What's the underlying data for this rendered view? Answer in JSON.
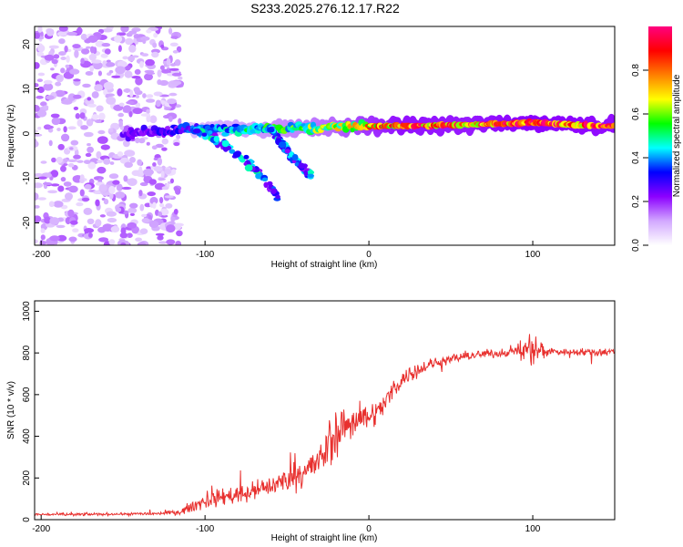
{
  "title": "S233.2025.276.12.17.R22",
  "colors": {
    "snr_line": "#e8302e",
    "axis": "#000000",
    "background": "#ffffff"
  },
  "chart_data": [
    {
      "type": "heatmap",
      "xlabel": "Height of straight line (km)",
      "ylabel": "Frequency (Hz)",
      "xlim": [
        -204,
        150
      ],
      "ylim": [
        -25,
        24
      ],
      "xticks": [
        -200,
        -100,
        0,
        100
      ],
      "yticks": [
        -20,
        -10,
        0,
        10,
        20
      ],
      "colorbar": {
        "label": "Normalized spectral amplitude",
        "range": [
          0,
          1
        ],
        "ticks": [
          "0.0",
          "0.2",
          "0.4",
          "0.6",
          "0.8"
        ],
        "tick_values": [
          0.0,
          0.2,
          0.4,
          0.6,
          0.8
        ],
        "stops": [
          "#ffffff",
          "#d2a8ff",
          "#8c00ff",
          "#0000ff",
          "#00ffff",
          "#00ff00",
          "#ffff00",
          "#ff7f00",
          "#ff0000",
          "#ff0080"
        ]
      },
      "ridge": {
        "description": "dominant frequency ridge versus height",
        "x": [
          -204,
          -150,
          -120,
          -100,
          -80,
          -60,
          -40,
          -20,
          0,
          20,
          60,
          100,
          150
        ],
        "freq_hz": [
          0,
          0,
          0.8,
          1.2,
          1.0,
          1.0,
          1.3,
          1.5,
          1.7,
          1.7,
          2.0,
          2.4,
          1.6
        ],
        "amplitude": [
          0.12,
          0.22,
          0.28,
          0.38,
          0.45,
          0.5,
          0.55,
          0.62,
          0.75,
          0.85,
          0.82,
          0.9,
          0.85
        ]
      },
      "noise_region": {
        "x": [
          -204,
          -115
        ],
        "freq_hz": [
          -25,
          24
        ],
        "amplitude": 0.1
      },
      "branches": [
        {
          "x": [
            -105,
            -85,
            -70,
            -55
          ],
          "freq_hz": [
            1.0,
            -3.0,
            -8.0,
            -14.0
          ]
        },
        {
          "x": [
            -60,
            -45,
            -35
          ],
          "freq_hz": [
            1.0,
            -6.0,
            -9.5
          ]
        }
      ]
    },
    {
      "type": "line",
      "xlabel": "Height of straight line (km)",
      "ylabel": "SNR (10 * v/v)",
      "xlim": [
        -204,
        150
      ],
      "ylim": [
        0,
        1050
      ],
      "xticks": [
        -200,
        -100,
        0,
        100
      ],
      "yticks": [
        0,
        200,
        400,
        600,
        800,
        1000
      ],
      "series": [
        {
          "name": "SNR",
          "x": [
            -204,
            -180,
            -150,
            -125,
            -115,
            -110,
            -100,
            -90,
            -80,
            -70,
            -60,
            -50,
            -40,
            -30,
            -25,
            -20,
            -15,
            -10,
            -5,
            0,
            5,
            10,
            15,
            20,
            25,
            30,
            40,
            50,
            60,
            70,
            80,
            90,
            95,
            100,
            105,
            110,
            120,
            130,
            140,
            150
          ],
          "values": [
            25,
            25,
            27,
            30,
            40,
            55,
            90,
            110,
            120,
            135,
            160,
            190,
            230,
            280,
            350,
            410,
            450,
            470,
            485,
            500,
            515,
            560,
            630,
            670,
            700,
            720,
            750,
            770,
            785,
            795,
            800,
            810,
            815,
            820,
            812,
            808,
            805,
            805,
            805,
            805
          ],
          "spread": [
            10,
            10,
            10,
            12,
            20,
            35,
            55,
            60,
            60,
            65,
            75,
            85,
            100,
            120,
            160,
            170,
            140,
            120,
            100,
            90,
            85,
            80,
            70,
            60,
            55,
            50,
            40,
            35,
            32,
            30,
            30,
            30,
            80,
            130,
            80,
            30,
            25,
            25,
            25,
            25
          ]
        }
      ]
    }
  ]
}
